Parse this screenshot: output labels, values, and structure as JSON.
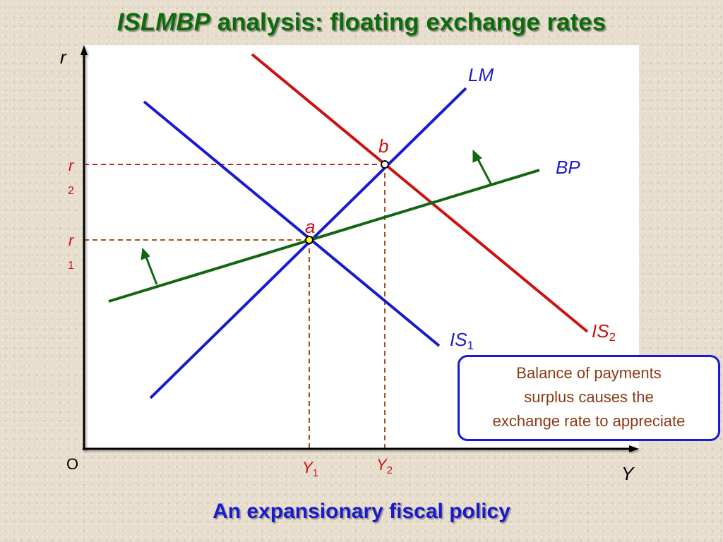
{
  "title": {
    "italic": "ISLMBP",
    "rest": " analysis: floating exchange rates"
  },
  "subtitle": "An expansionary fiscal policy",
  "axes": {
    "y_label": "r",
    "x_label": "Y",
    "origin_label": "O"
  },
  "curves": {
    "lm": "LM",
    "bp": "BP",
    "is1": {
      "main": "IS",
      "sub": "1"
    },
    "is2": {
      "main": "IS",
      "sub": "2"
    }
  },
  "points": {
    "a": "a",
    "b": "b"
  },
  "levels": {
    "r1": {
      "main": "r",
      "sub": "1"
    },
    "r2": {
      "main": "r",
      "sub": "2"
    },
    "y1": {
      "main": "Y",
      "sub": "1"
    },
    "y2": {
      "main": "Y",
      "sub": "2"
    }
  },
  "callout": [
    "Balance of payments",
    "surplus causes the",
    "exchange rate to appreciate"
  ],
  "colors": {
    "lm": "#1a1acc",
    "is": "#1a1acc",
    "is2": "#cc1111",
    "bp": "#116611",
    "guides": "#a0521c",
    "guide_r2": "#cc2222",
    "label_blue": "#1a1acc",
    "label_red": "#cc1111",
    "label_brown": "#8b3a14"
  }
}
